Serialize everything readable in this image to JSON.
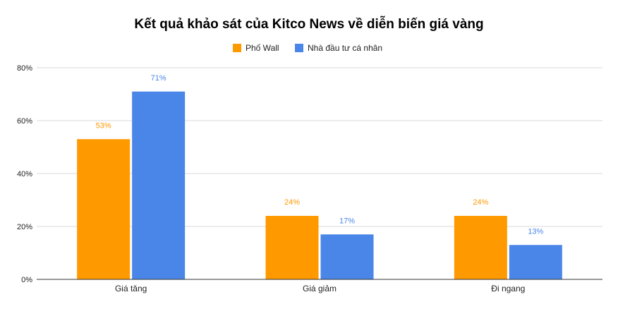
{
  "chart_data": {
    "type": "bar",
    "title": "Kết quả khảo sát của Kitco News về diễn biến giá vàng",
    "categories": [
      "Giá tăng",
      "Giá giảm",
      "Đi ngang"
    ],
    "series": [
      {
        "name": "Phố Wall",
        "values": [
          53,
          24,
          24
        ],
        "color": "#ff9900"
      },
      {
        "name": "Nhà đầu tư cá nhân",
        "values": [
          71,
          17,
          13
        ],
        "color": "#4a86e8"
      }
    ],
    "value_suffix": "%",
    "ylim": [
      0,
      80
    ],
    "yticks": [
      0,
      20,
      40,
      60,
      80
    ],
    "ytick_labels": [
      "0%",
      "20%",
      "40%",
      "60%",
      "80%"
    ],
    "grid": true,
    "legend_position": "top-center",
    "xlabel": "",
    "ylabel": ""
  }
}
